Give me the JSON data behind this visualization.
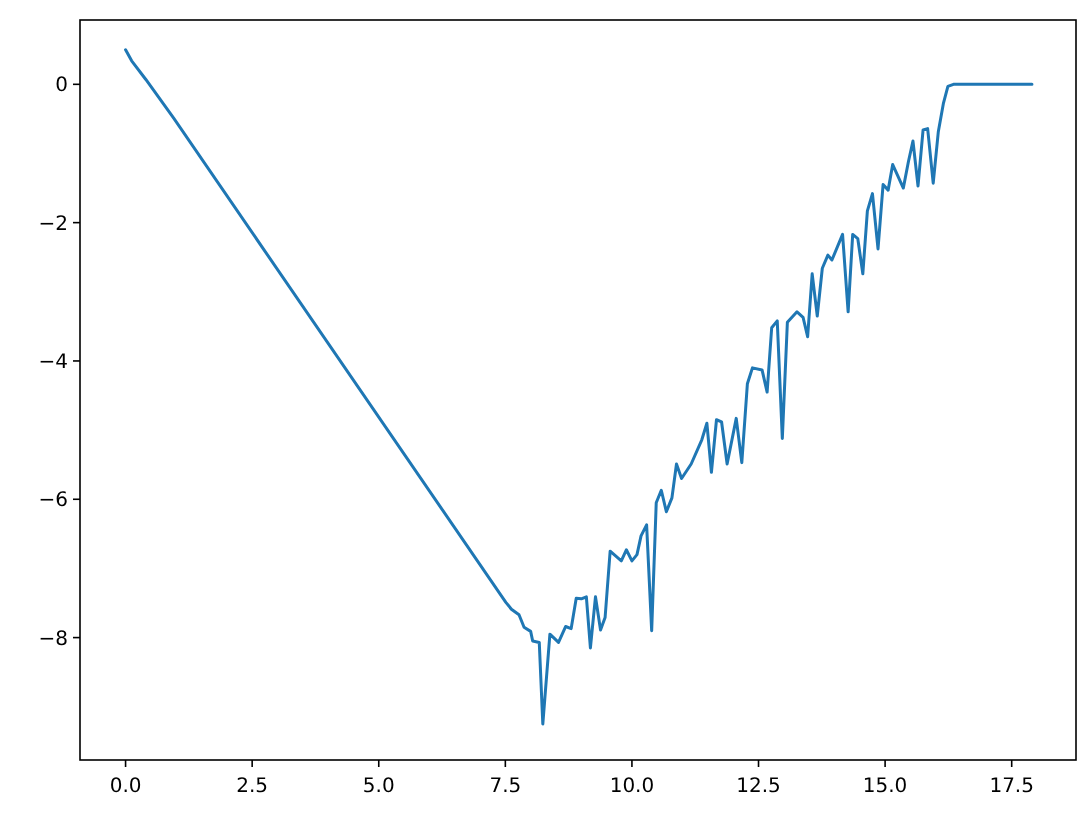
{
  "chart_data": {
    "type": "line",
    "xlim": [
      -0.9,
      18.77
    ],
    "ylim": [
      -9.77,
      0.93
    ],
    "xticks": [
      {
        "value": 0,
        "label": "0.0"
      },
      {
        "value": 2.5,
        "label": "2.5"
      },
      {
        "value": 5,
        "label": "5.0"
      },
      {
        "value": 7.5,
        "label": "7.5"
      },
      {
        "value": 10,
        "label": "10.0"
      },
      {
        "value": 12.5,
        "label": "12.5"
      },
      {
        "value": 15,
        "label": "15.0"
      },
      {
        "value": 17.5,
        "label": "17.5"
      }
    ],
    "yticks": [
      {
        "value": 0,
        "label": "0"
      },
      {
        "value": -2,
        "label": "−2"
      },
      {
        "value": -4,
        "label": "−4"
      },
      {
        "value": -6,
        "label": "−6"
      },
      {
        "value": -8,
        "label": "−8"
      }
    ],
    "grid": false,
    "marker": "none",
    "line_style": "solid",
    "series": [
      {
        "color": "#1f77b4",
        "x": [
          0,
          0.12,
          0.4,
          0.95,
          7.51,
          7.62,
          7.77,
          7.87,
          8.0,
          8.04,
          8.17,
          8.24,
          8.38,
          8.55,
          8.69,
          8.8,
          8.9,
          9.0,
          9.1,
          9.18,
          9.28,
          9.38,
          9.47,
          9.57,
          9.79,
          9.89,
          10.0,
          10.1,
          10.18,
          10.29,
          10.39,
          10.48,
          10.58,
          10.68,
          10.79,
          10.88,
          10.98,
          11.17,
          11.38,
          11.48,
          11.57,
          11.67,
          11.77,
          11.88,
          12.06,
          12.17,
          12.28,
          12.38,
          12.57,
          12.67,
          12.76,
          12.87,
          12.97,
          13.07,
          13.26,
          13.38,
          13.47,
          13.56,
          13.66,
          13.76,
          13.87,
          13.95,
          14.16,
          14.27,
          14.36,
          14.46,
          14.56,
          14.65,
          14.75,
          14.86,
          14.96,
          15.06,
          15.15,
          15.36,
          15.46,
          15.55,
          15.65,
          15.75,
          15.84,
          15.95,
          16.05,
          16.15,
          16.24,
          16.35,
          17.9
        ],
        "values": [
          0.5,
          0.34,
          0.07,
          -0.49,
          -7.49,
          -7.59,
          -7.67,
          -7.85,
          -7.91,
          -8.05,
          -8.07,
          -9.25,
          -7.95,
          -8.07,
          -7.84,
          -7.87,
          -7.43,
          -7.44,
          -7.41,
          -8.15,
          -7.41,
          -7.89,
          -7.71,
          -6.75,
          -6.89,
          -6.73,
          -6.89,
          -6.8,
          -6.53,
          -6.37,
          -7.9,
          -6.05,
          -5.87,
          -6.18,
          -5.98,
          -5.49,
          -5.7,
          -5.49,
          -5.14,
          -4.9,
          -5.61,
          -4.85,
          -4.88,
          -5.49,
          -4.83,
          -5.47,
          -4.33,
          -4.1,
          -4.13,
          -4.45,
          -3.52,
          -3.42,
          -5.12,
          -3.44,
          -3.29,
          -3.37,
          -3.65,
          -2.74,
          -3.35,
          -2.66,
          -2.47,
          -2.54,
          -2.17,
          -3.29,
          -2.17,
          -2.23,
          -2.74,
          -1.83,
          -1.58,
          -2.38,
          -1.45,
          -1.53,
          -1.16,
          -1.5,
          -1.12,
          -0.82,
          -1.47,
          -0.66,
          -0.64,
          -1.43,
          -0.69,
          -0.28,
          -0.03,
          0,
          0
        ]
      }
    ]
  }
}
